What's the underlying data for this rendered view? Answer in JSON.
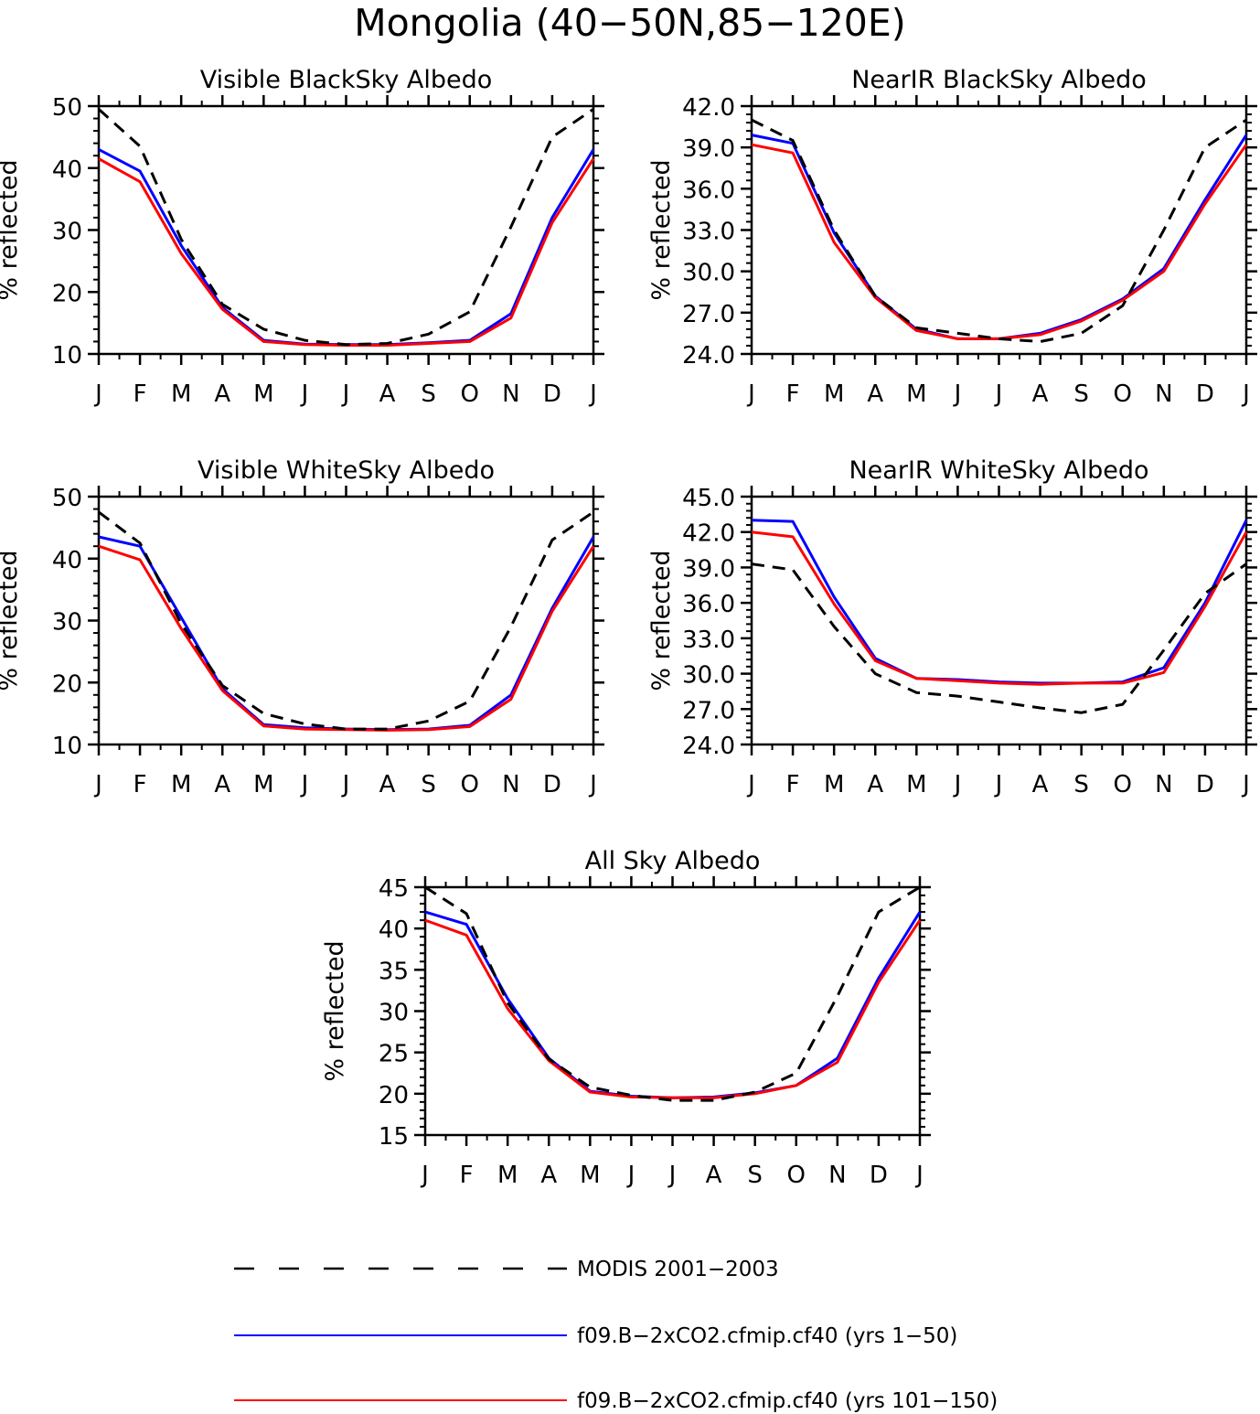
{
  "figure": {
    "title": "Mongolia (40−50N,85−120E)"
  },
  "legend": [
    {
      "name": "MODIS 2001−2003",
      "color": "#000000",
      "dashed": true
    },
    {
      "name": "f09.B−2xCO2.cfmip.cf40 (yrs 1−50)",
      "color": "#0000ff",
      "dashed": false
    },
    {
      "name": "f09.B−2xCO2.cfmip.cf40 (yrs 101−150)",
      "color": "#ff0000",
      "dashed": false
    }
  ],
  "chart_data": [
    {
      "type": "line",
      "title": "Visible BlackSky Albedo",
      "ylabel": "% reflected",
      "ylim": [
        10,
        50
      ],
      "yticks": [
        "10",
        "20",
        "30",
        "40",
        "50"
      ],
      "categories": [
        "J",
        "F",
        "M",
        "A",
        "M",
        "J",
        "J",
        "A",
        "S",
        "O",
        "N",
        "D",
        "J"
      ],
      "series": [
        {
          "name": "MODIS 2001−2003",
          "values": [
            49.5,
            43.5,
            28.5,
            18.0,
            14.0,
            12.2,
            11.5,
            11.7,
            13.2,
            16.8,
            30.5,
            45.0,
            49.5
          ]
        },
        {
          "name": "f09.B−2xCO2.cfmip.cf40 (yrs 1−50)",
          "values": [
            43.0,
            39.5,
            27.5,
            17.5,
            12.2,
            11.6,
            11.5,
            11.5,
            11.8,
            12.2,
            16.5,
            32.0,
            43.0
          ]
        },
        {
          "name": "f09.B−2xCO2.cfmip.cf40 (yrs 101−150)",
          "values": [
            41.5,
            37.8,
            26.2,
            17.2,
            12.0,
            11.5,
            11.4,
            11.4,
            11.7,
            12.0,
            15.8,
            31.2,
            41.5
          ]
        }
      ]
    },
    {
      "type": "line",
      "title": "NearIR BlackSky Albedo",
      "ylabel": "% reflected",
      "ylim": [
        24,
        42
      ],
      "yticks": [
        "24.0",
        "27.0",
        "30.0",
        "33.0",
        "36.0",
        "39.0",
        "42.0"
      ],
      "categories": [
        "J",
        "F",
        "M",
        "A",
        "M",
        "J",
        "J",
        "A",
        "S",
        "O",
        "N",
        "D",
        "J"
      ],
      "series": [
        {
          "name": "MODIS 2001−2003",
          "values": [
            41.0,
            39.5,
            33.0,
            28.2,
            25.9,
            25.5,
            25.1,
            24.9,
            25.5,
            27.5,
            33.0,
            39.0,
            41.0
          ]
        },
        {
          "name": "f09.B−2xCO2.cfmip.cf40 (yrs 1−50)",
          "values": [
            39.9,
            39.3,
            32.8,
            28.2,
            25.8,
            25.1,
            25.1,
            25.5,
            26.5,
            28.0,
            30.2,
            35.2,
            39.9
          ]
        },
        {
          "name": "f09.B−2xCO2.cfmip.cf40 (yrs 101−150)",
          "values": [
            39.2,
            38.6,
            32.1,
            28.1,
            25.7,
            25.1,
            25.1,
            25.4,
            26.4,
            27.9,
            30.0,
            34.9,
            39.2
          ]
        }
      ]
    },
    {
      "type": "line",
      "title": "Visible WhiteSky Albedo",
      "ylabel": "% reflected",
      "ylim": [
        10,
        50
      ],
      "yticks": [
        "10",
        "20",
        "30",
        "40",
        "50"
      ],
      "categories": [
        "J",
        "F",
        "M",
        "A",
        "M",
        "J",
        "J",
        "A",
        "S",
        "O",
        "N",
        "D",
        "J"
      ],
      "series": [
        {
          "name": "MODIS 2001−2003",
          "values": [
            47.5,
            42.5,
            29.5,
            19.5,
            15.0,
            13.3,
            12.5,
            12.5,
            13.8,
            17.0,
            29.0,
            43.0,
            47.5
          ]
        },
        {
          "name": "f09.B−2xCO2.cfmip.cf40 (yrs 1−50)",
          "values": [
            43.5,
            42.0,
            30.5,
            19.0,
            13.2,
            12.7,
            12.5,
            12.4,
            12.5,
            13.1,
            18.0,
            32.0,
            43.5
          ]
        },
        {
          "name": "f09.B−2xCO2.cfmip.cf40 (yrs 101−150)",
          "values": [
            42.0,
            39.8,
            28.7,
            18.7,
            13.0,
            12.5,
            12.4,
            12.3,
            12.4,
            12.9,
            17.3,
            31.5,
            42.0
          ]
        }
      ]
    },
    {
      "type": "line",
      "title": "NearIR WhiteSky Albedo",
      "ylabel": "% reflected",
      "ylim": [
        24,
        45
      ],
      "yticks": [
        "24.0",
        "27.0",
        "30.0",
        "33.0",
        "36.0",
        "39.0",
        "42.0",
        "45.0"
      ],
      "categories": [
        "J",
        "F",
        "M",
        "A",
        "M",
        "J",
        "J",
        "A",
        "S",
        "O",
        "N",
        "D",
        "J"
      ],
      "series": [
        {
          "name": "MODIS 2001−2003",
          "values": [
            39.3,
            38.8,
            34.0,
            30.0,
            28.4,
            28.1,
            27.6,
            27.1,
            26.7,
            27.4,
            32.0,
            36.8,
            39.3
          ]
        },
        {
          "name": "f09.B−2xCO2.cfmip.cf40 (yrs 1−50)",
          "values": [
            43.0,
            42.9,
            36.5,
            31.3,
            29.6,
            29.5,
            29.3,
            29.2,
            29.2,
            29.3,
            30.5,
            36.0,
            43.0
          ]
        },
        {
          "name": "f09.B−2xCO2.cfmip.cf40 (yrs 101−150)",
          "values": [
            42.0,
            41.6,
            35.9,
            31.1,
            29.6,
            29.4,
            29.2,
            29.1,
            29.2,
            29.2,
            30.1,
            35.7,
            42.0
          ]
        }
      ]
    },
    {
      "type": "line",
      "title": "All Sky Albedo",
      "ylabel": "% reflected",
      "ylim": [
        15,
        45
      ],
      "yticks": [
        "15",
        "20",
        "25",
        "30",
        "35",
        "40",
        "45"
      ],
      "categories": [
        "J",
        "F",
        "M",
        "A",
        "M",
        "J",
        "J",
        "A",
        "S",
        "O",
        "N",
        "D",
        "J"
      ],
      "series": [
        {
          "name": "MODIS 2001−2003",
          "values": [
            45.0,
            41.8,
            31.0,
            24.2,
            20.8,
            19.8,
            19.2,
            19.2,
            20.2,
            22.5,
            31.8,
            42.0,
            45.0
          ]
        },
        {
          "name": "f09.B−2xCO2.cfmip.cf40 (yrs 1−50)",
          "values": [
            42.0,
            40.5,
            31.5,
            24.3,
            20.3,
            19.7,
            19.5,
            19.6,
            20.1,
            21.0,
            24.3,
            34.0,
            42.0
          ]
        },
        {
          "name": "f09.B−2xCO2.cfmip.cf40 (yrs 101−150)",
          "values": [
            41.0,
            39.2,
            30.3,
            24.0,
            20.2,
            19.6,
            19.5,
            19.5,
            20.0,
            21.0,
            23.8,
            33.5,
            41.0
          ]
        }
      ]
    }
  ]
}
